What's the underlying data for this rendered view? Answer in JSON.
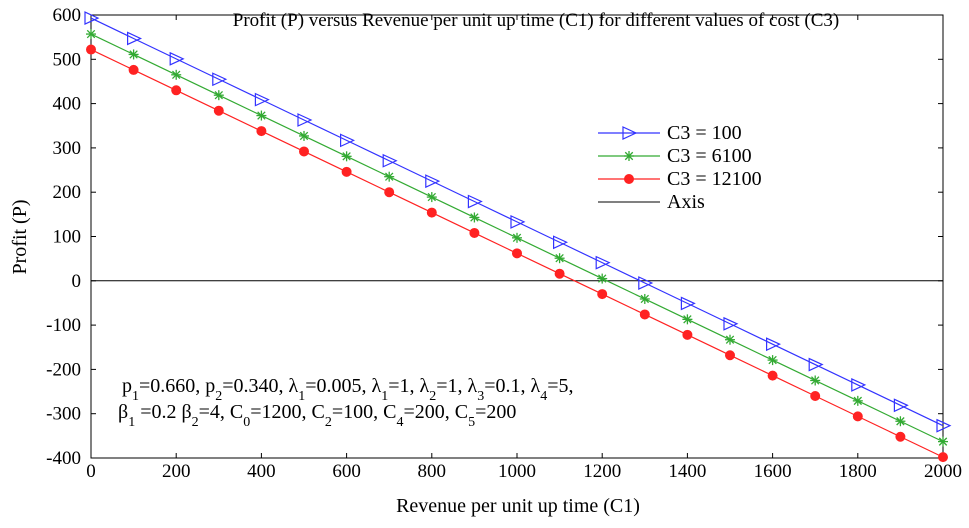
{
  "chart_data": {
    "type": "line",
    "title": "Profit (P) versus Revenue per unit up time (C1) for different values of cost (C3)",
    "xlabel": "Revenue per unit up time (C1)",
    "ylabel": "Profit (P)",
    "xlim": [
      0,
      2000
    ],
    "ylim": [
      -400,
      600
    ],
    "x_ticks": [
      "0",
      "200",
      "400",
      "600",
      "800",
      "1000",
      "1200",
      "1400",
      "1600",
      "1800",
      "2000"
    ],
    "y_ticks": [
      "600",
      "500",
      "400",
      "300",
      "200",
      "100",
      "0",
      "-100",
      "-200",
      "-300",
      "-400"
    ],
    "x": [
      0,
      100,
      200,
      300,
      400,
      500,
      600,
      700,
      800,
      900,
      1000,
      1100,
      1200,
      1300,
      1400,
      1500,
      1600,
      1700,
      1800,
      1900,
      2000
    ],
    "series": [
      {
        "name": "C3 = 100",
        "marker": "triangle-right",
        "color": "#3333ff",
        "values": [
          593,
          547,
          501,
          455,
          409,
          363,
          317,
          271,
          225,
          179,
          133,
          87,
          41,
          -5,
          -51,
          -97,
          -143,
          -189,
          -235,
          -281,
          -327
        ]
      },
      {
        "name": "C3 = 6100",
        "marker": "star",
        "color": "#33aa33",
        "values": [
          557,
          511,
          465,
          419,
          373,
          327,
          281,
          235,
          189,
          143,
          97,
          51,
          5,
          -41,
          -87,
          -133,
          -179,
          -225,
          -271,
          -317,
          -363
        ]
      },
      {
        "name": "C3 = 12100",
        "marker": "circle",
        "color": "#ff2222",
        "values": [
          522,
          476,
          430,
          384,
          338,
          292,
          246,
          200,
          154,
          108,
          62,
          16,
          -30,
          -76,
          -122,
          -168,
          -214,
          -260,
          -306,
          -352,
          -398
        ]
      }
    ],
    "axis_line": {
      "name": "Axis",
      "y": 0,
      "color": "#000000"
    },
    "legend": {
      "placement": "right"
    },
    "grid": false
  },
  "annotation": {
    "line1_parts": [
      {
        "t": "p"
      },
      {
        "t": "1",
        "sub": true
      },
      {
        "t": "=0.660,  p"
      },
      {
        "t": "2",
        "sub": true
      },
      {
        "t": "=0.340, λ"
      },
      {
        "t": "1",
        "sub": true
      },
      {
        "t": "=0.005, λ"
      },
      {
        "t": "1",
        "sub": true
      },
      {
        "t": "=1, λ"
      },
      {
        "t": "2",
        "sub": true
      },
      {
        "t": "=1, λ"
      },
      {
        "t": "3",
        "sub": true
      },
      {
        "t": "=0.1, λ"
      },
      {
        "t": "4",
        "sub": true
      },
      {
        "t": "=5,"
      }
    ],
    "line2_parts": [
      {
        "t": "β"
      },
      {
        "t": "1",
        "sub": true
      },
      {
        "t": " =0.2 β"
      },
      {
        "t": "2",
        "sub": true
      },
      {
        "t": "=4, C"
      },
      {
        "t": "0",
        "sub": true
      },
      {
        "t": "=1200, C"
      },
      {
        "t": "2",
        "sub": true
      },
      {
        "t": "=100, C"
      },
      {
        "t": "4",
        "sub": true
      },
      {
        "t": "=200, C"
      },
      {
        "t": "5",
        "sub": true
      },
      {
        "t": "=200"
      }
    ]
  }
}
